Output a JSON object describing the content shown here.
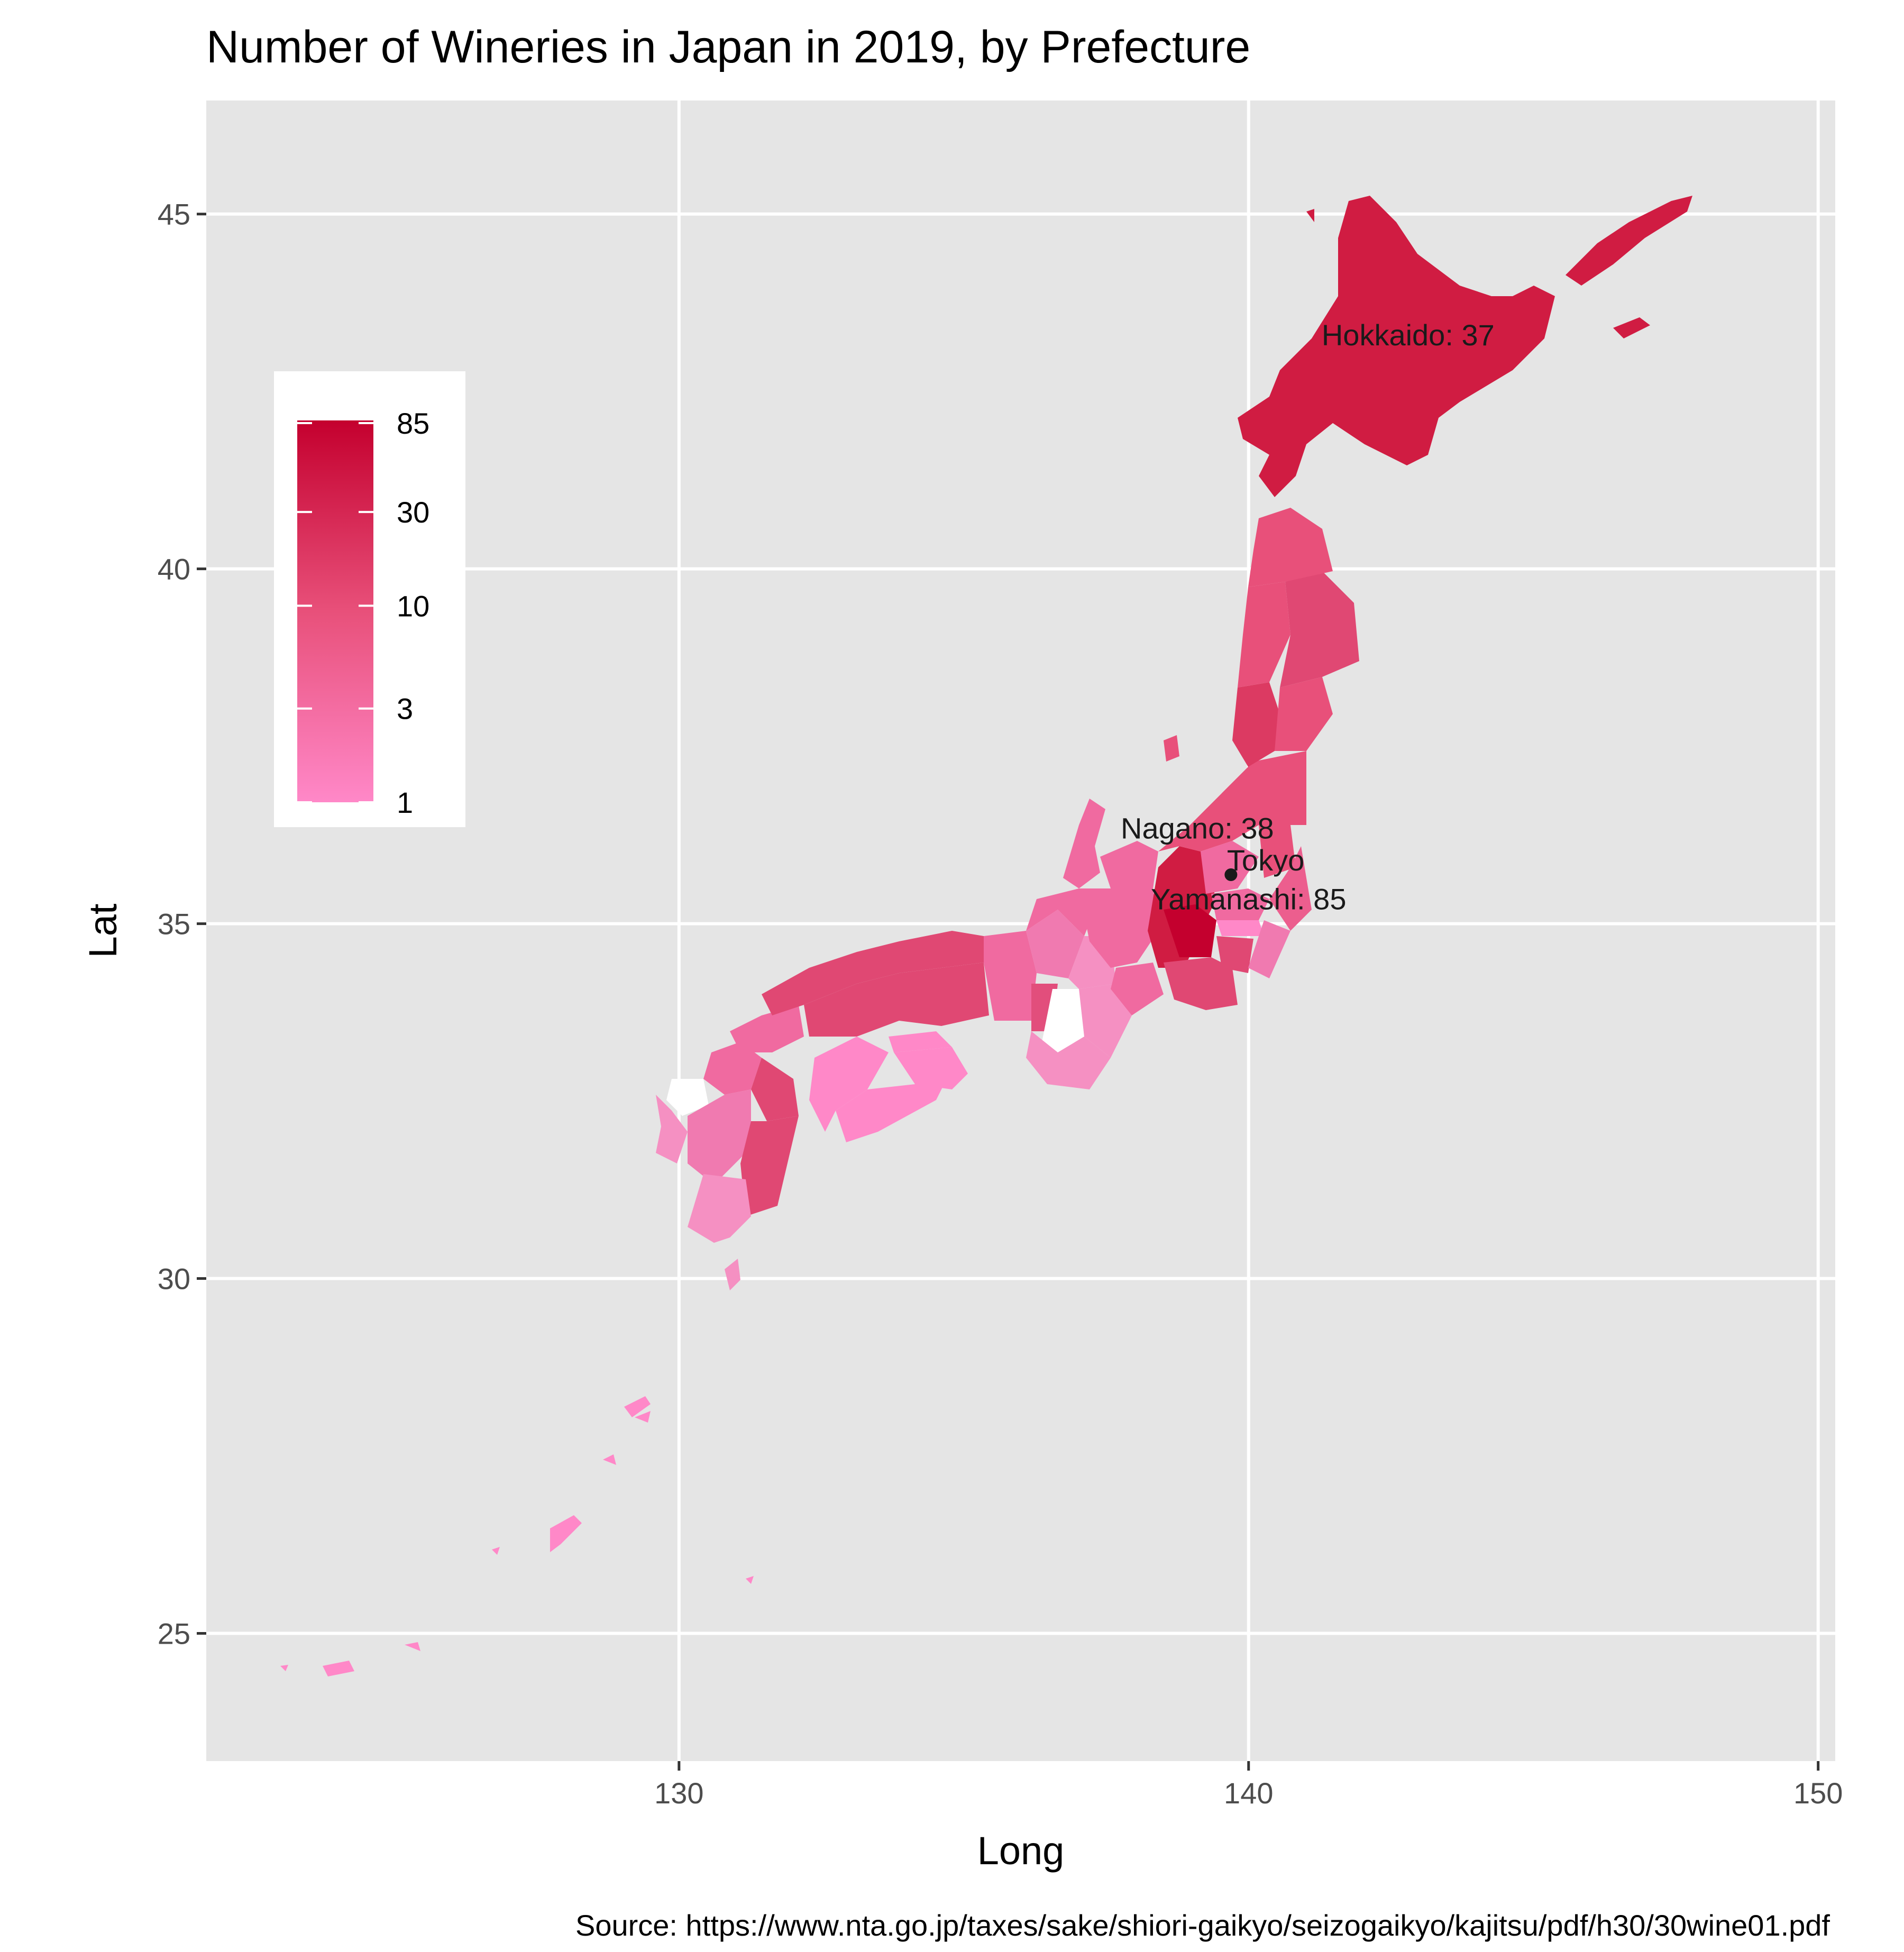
{
  "chart_data": {
    "type": "choropleth-map",
    "title": "Number of Wineries in Japan in 2019, by Prefecture",
    "xlabel": "Long",
    "ylabel": "Lat",
    "xlim": [
      121.7,
      150.3
    ],
    "ylim": [
      23.2,
      46.6
    ],
    "x_ticks": [
      130,
      140,
      150
    ],
    "y_ticks": [
      25,
      30,
      35,
      40,
      45
    ],
    "legend": {
      "placement": "top-left-inside",
      "scale": "log",
      "labels": [
        "85",
        "30",
        "10",
        "3",
        "1"
      ],
      "breaks": [
        85,
        30,
        10,
        3,
        1
      ],
      "color_low": "#ff88c8",
      "color_high": "#c4002e"
    },
    "annotations": [
      {
        "text": "Hokkaido: 37",
        "lon": 142.8,
        "lat": 43.3
      },
      {
        "text": "Nagano: 38",
        "lon": 139.1,
        "lat": 36.35
      },
      {
        "text": "Tokyo",
        "lon": 140.3,
        "lat": 35.9
      },
      {
        "text": "Yamanashi: 85",
        "lon": 140.0,
        "lat": 35.35
      }
    ],
    "points": [
      {
        "name": "Tokyo",
        "lon": 139.69,
        "lat": 35.69
      }
    ],
    "prefecture_wineries": {
      "Hokkaido": 37,
      "Aomori": 5,
      "Iwate": 12,
      "Miyagi": 5,
      "Akita": 5,
      "Yamagata": 15,
      "Fukushima": 7,
      "Niigata": 8,
      "Tochigi": 7,
      "Ibaraki": 6,
      "Gunma": 5,
      "Saitama": 5,
      "Chiba": 3,
      "Kanagawa": 10,
      "Yamanashi": 85,
      "Nagano": 38,
      "Shizuoka": 12,
      "Toyama": 4,
      "Ishikawa": 4,
      "Fukui": 4,
      "Gifu": 4,
      "Aichi": 5,
      "Shiga": 2,
      "Kyoto": 3,
      "Osaka": 9,
      "Hyogo": 6,
      "Mie": 2,
      "Wakayama": 2,
      "Tottori": 10,
      "Shimane": 10,
      "Okayama": 10,
      "Hiroshima": 10,
      "Yamaguchi": 6,
      "Kagawa": 1,
      "Tokushima": 1,
      "Ehime": 1,
      "Kochi": 1,
      "Fukuoka": 4,
      "Oita": 10,
      "Kumamoto": 3,
      "Miyazaki": 10,
      "Kagoshima": 2,
      "Nagasaki": 2,
      "Okinawa": 1
    },
    "no_data": [
      "Nara",
      "Saga"
    ],
    "grid": true,
    "background": "#e5e5e5"
  },
  "caption": "Source: https://www.nta.go.jp/taxes/sake/shiori-gaikyo/seizogaikyo/kajitsu/pdf/h30/30wine01.pdf"
}
